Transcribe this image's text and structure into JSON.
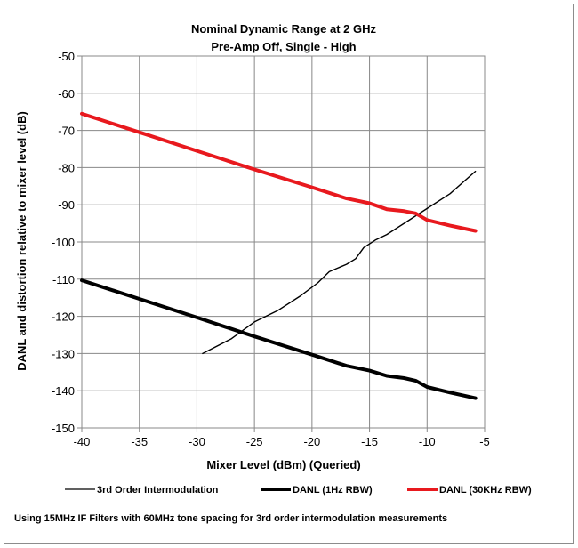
{
  "chart_data": {
    "type": "line",
    "title": "Nominal Dynamic Range at 2 GHz",
    "subtitle": "Pre-Amp Off, Single - High",
    "xlabel": "Mixer Level (dBm) (Queried)",
    "ylabel": "DANL and distortion relative to mixer level (dB)",
    "xlim": [
      -40,
      -5
    ],
    "ylim": [
      -150,
      -50
    ],
    "x_ticks": [
      -40,
      -35,
      -30,
      -25,
      -20,
      -15,
      -10,
      -5
    ],
    "y_ticks": [
      -50,
      -60,
      -70,
      -80,
      -90,
      -100,
      -110,
      -120,
      -130,
      -140,
      -150
    ],
    "x_tick_labels": [
      "-40",
      "-35",
      "-30",
      "-25",
      "-20",
      "-15",
      "-10",
      "-5"
    ],
    "y_tick_labels": [
      "-50",
      "-60",
      "-70",
      "-80",
      "-90",
      "-100",
      "-110",
      "-120",
      "-130",
      "-140",
      "-150"
    ],
    "grid": true,
    "legend_position": "bottom",
    "series": [
      {
        "name": "3rd Order Intermodulation",
        "color": "#000000",
        "line_style": "thin",
        "points": [
          [
            -29.5,
            -130
          ],
          [
            -27,
            -126
          ],
          [
            -25,
            -121.5
          ],
          [
            -23,
            -118.5
          ],
          [
            -21,
            -114.5
          ],
          [
            -19.5,
            -111
          ],
          [
            -18.5,
            -108
          ],
          [
            -17,
            -106
          ],
          [
            -16.2,
            -104.5
          ],
          [
            -15.5,
            -101.5
          ],
          [
            -14.5,
            -99.5
          ],
          [
            -13.5,
            -98
          ],
          [
            -12,
            -95
          ],
          [
            -10,
            -91
          ],
          [
            -8,
            -87
          ],
          [
            -5.8,
            -81
          ]
        ]
      },
      {
        "name": "DANL (1Hz RBW)",
        "color": "#000000",
        "line_style": "thick",
        "points": [
          [
            -40,
            -110.3
          ],
          [
            -35,
            -115.3
          ],
          [
            -30,
            -120.3
          ],
          [
            -25,
            -125.4
          ],
          [
            -20,
            -130.3
          ],
          [
            -17,
            -133.3
          ],
          [
            -15,
            -134.6
          ],
          [
            -13.5,
            -136
          ],
          [
            -12,
            -136.6
          ],
          [
            -11,
            -137.3
          ],
          [
            -10,
            -139
          ],
          [
            -8,
            -140.5
          ],
          [
            -5.8,
            -142
          ]
        ]
      },
      {
        "name": "DANL (30KHz RBW)",
        "color": "#e8191e",
        "line_style": "thick",
        "points": [
          [
            -40,
            -65.5
          ],
          [
            -35,
            -70.5
          ],
          [
            -30,
            -75.5
          ],
          [
            -25,
            -80.5
          ],
          [
            -20,
            -85.3
          ],
          [
            -17,
            -88.3
          ],
          [
            -15,
            -89.6
          ],
          [
            -13.5,
            -91.2
          ],
          [
            -12,
            -91.7
          ],
          [
            -11,
            -92.3
          ],
          [
            -10,
            -94.1
          ],
          [
            -8,
            -95.6
          ],
          [
            -5.8,
            -97
          ]
        ]
      }
    ]
  },
  "footnote": "Using 15MHz IF Filters with 60MHz tone spacing for 3rd order intermodulation measurements"
}
